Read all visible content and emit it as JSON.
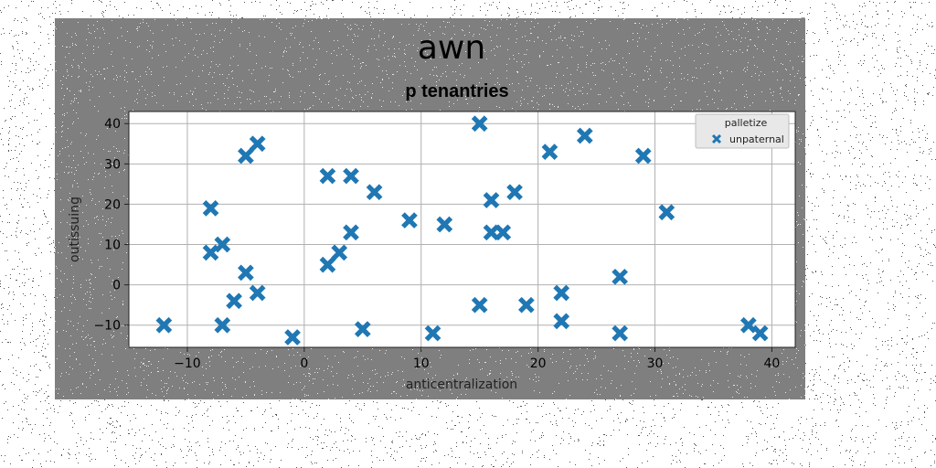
{
  "chart_data": {
    "type": "scatter",
    "suptitle": "awn",
    "title": "p tenantries",
    "xlabel": "anticentralization",
    "ylabel": "outissuing",
    "xlim": [
      -15,
      42
    ],
    "ylim": [
      -15.5,
      43
    ],
    "xticks": [
      -10,
      0,
      10,
      20,
      30,
      40
    ],
    "yticks": [
      -10,
      0,
      10,
      20,
      30,
      40
    ],
    "grid": true,
    "legend": {
      "title": "palletize",
      "placement": "top-right",
      "entries": [
        "unpaternal"
      ]
    },
    "colors": {
      "marker": "#1f77b4",
      "figure_bg": "#7f7f7f",
      "axes_bg": "#ffffff"
    },
    "marker": "x",
    "series": [
      {
        "name": "unpaternal",
        "points": [
          [
            -12,
            -10
          ],
          [
            -8,
            19
          ],
          [
            -8,
            8
          ],
          [
            -7,
            10
          ],
          [
            -7,
            -10
          ],
          [
            -6,
            -4
          ],
          [
            -5,
            32
          ],
          [
            -4,
            35
          ],
          [
            -5,
            3
          ],
          [
            -4,
            -2
          ],
          [
            -1,
            -13
          ],
          [
            2,
            27
          ],
          [
            2,
            5
          ],
          [
            3,
            8
          ],
          [
            4,
            27
          ],
          [
            4,
            13
          ],
          [
            5,
            -11
          ],
          [
            6,
            23
          ],
          [
            9,
            16
          ],
          [
            11,
            -12
          ],
          [
            12,
            15
          ],
          [
            15,
            40
          ],
          [
            15,
            -5
          ],
          [
            16,
            21
          ],
          [
            16,
            13
          ],
          [
            17,
            13
          ],
          [
            18,
            23
          ],
          [
            19,
            -5
          ],
          [
            21,
            33
          ],
          [
            22,
            -2
          ],
          [
            22,
            -9
          ],
          [
            24,
            37
          ],
          [
            27,
            2
          ],
          [
            27,
            -12
          ],
          [
            29,
            32
          ],
          [
            31,
            18
          ],
          [
            38,
            -10
          ],
          [
            39,
            -12
          ]
        ]
      }
    ]
  }
}
